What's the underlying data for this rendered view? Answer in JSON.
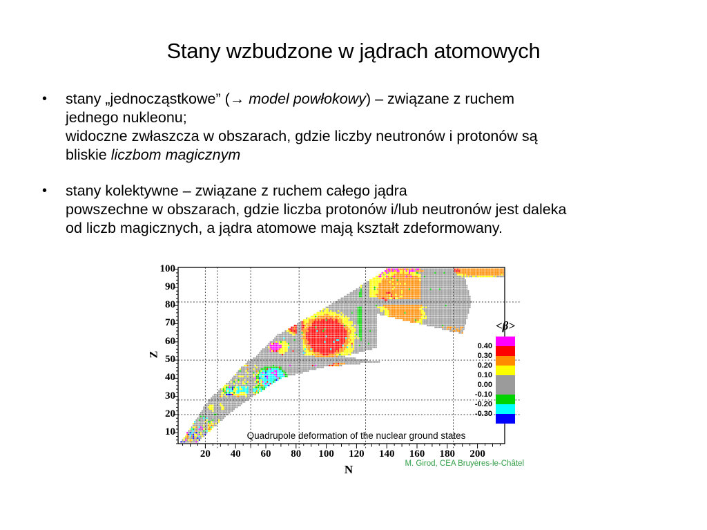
{
  "slide": {
    "title": "Stany wzbudzone w jądrach atomowych",
    "bullets": [
      {
        "marker": "•",
        "lines": [
          [
            {
              "t": "stany „jednocząstkowe” (→ "
            },
            {
              "t": "model powłokowy",
              "i": true
            },
            {
              "t": ") – związane z ruchem"
            }
          ],
          [
            {
              "t": "jednego nukleonu;"
            }
          ],
          [
            {
              "t": "widoczne zwłaszcza w obszarach, gdzie liczby neutronów i protonów są"
            }
          ],
          [
            {
              "t": "bliskie "
            },
            {
              "t": "liczbom magicznym",
              "i": true
            }
          ]
        ]
      },
      {
        "marker": "•",
        "lines": [
          [
            {
              "t": "stany kolektywne – związane z ruchem całego jądra"
            }
          ],
          [
            {
              "t": "powszechne w obszarach, gdzie liczba protonów i/lub neutronów jest daleka"
            }
          ],
          [
            {
              "t": "od liczb magicznych, a jądra atomowe mają kształt zdeformowany."
            }
          ]
        ]
      }
    ]
  },
  "chart_data": {
    "type": "heatmap",
    "caption": "Quadrupole deformation of the nuclear ground states",
    "credit": "M. Girod, CEA Bruyères-le-Châtel",
    "credit_color": "#2e9e44",
    "xlabel": "N",
    "ylabel": "Z",
    "xlim": [
      2,
      218
    ],
    "ylim": [
      4,
      101
    ],
    "x_ticks": [
      20,
      40,
      60,
      80,
      100,
      120,
      140,
      160,
      180,
      200
    ],
    "y_ticks": [
      10,
      20,
      30,
      40,
      50,
      60,
      70,
      80,
      90,
      100
    ],
    "gridlines": {
      "style": "dashed",
      "x_at": [
        20,
        28,
        50,
        82,
        126,
        184
      ],
      "y_at": [
        20,
        28,
        50,
        82
      ]
    },
    "legend": {
      "title": "<β>",
      "tick_labels": [
        "0.40",
        "0.30",
        "0.20",
        "0.10",
        "0.00",
        "-0.10",
        "-0.20",
        "-0.30"
      ],
      "colors_top_to_bottom": [
        "magenta",
        "red",
        "orange",
        "yellow",
        "gray",
        "green",
        "cyan",
        "blue"
      ],
      "position": "right"
    },
    "palette": {
      "magenta": "#ff00ff",
      "red": "#ff0000",
      "orange": "#ff8c00",
      "yellow": "#ffff00",
      "gray": "#9b9b9b",
      "green": "#00d300",
      "cyan": "#00ffff",
      "blue": "#0000ff"
    },
    "value_bins": {
      "thresholds": [
        0.4,
        0.3,
        0.2,
        0.1,
        -0.1,
        -0.2,
        -0.3
      ],
      "colors": [
        "magenta",
        "red",
        "orange",
        "yellow",
        "gray",
        "green",
        "cyan",
        "blue"
      ]
    },
    "model": {
      "band": [
        [
          5,
          4,
          15
        ],
        [
          20,
          16,
          35
        ],
        [
          28,
          22,
          48
        ],
        [
          40,
          38,
          70
        ],
        [
          46,
          44,
          98
        ],
        [
          49,
          48,
          135
        ],
        [
          52,
          54,
          112
        ],
        [
          56,
          58,
          130
        ],
        [
          64,
          68,
          190
        ],
        [
          82,
          106,
          196
        ],
        [
          100,
          140,
          190
        ]
      ],
      "spurs": [
        [
          96,
          100,
          184,
          222
        ]
      ],
      "diag_holes": [
        {
          "z": [
            56,
            75
          ],
          "n_from": 134,
          "edge": 135,
          "slope": 5.2
        }
      ],
      "force_gray": [
        [
          83,
          101,
          163,
          184
        ]
      ],
      "magic_n": [
        8,
        20,
        28,
        50,
        82,
        126,
        184
      ],
      "magic_z": [
        8,
        20,
        28,
        50,
        82
      ],
      "soft_gray_threshold": 0.2,
      "noise": 0.07,
      "blobs": [
        [
          100,
          63,
          12,
          9,
          0.35,
          1.3
        ],
        [
          80,
          69,
          5,
          4,
          0.33,
          0.8
        ],
        [
          66,
          57,
          3,
          2,
          0.42,
          0.5
        ],
        [
          150,
          87,
          15,
          10,
          0.26,
          0.8
        ],
        [
          152,
          75,
          10,
          5,
          0.24,
          1.0
        ],
        [
          205,
          100,
          24,
          3.2,
          0.24,
          0.9
        ],
        [
          26,
          24,
          5,
          4,
          0.16,
          1.0
        ],
        [
          40,
          32,
          7,
          2.5,
          0.15,
          1.0
        ],
        [
          24,
          11,
          5,
          3,
          0.22,
          1.0
        ],
        [
          64,
          40,
          8,
          5,
          -0.27,
          0.9
        ],
        [
          35,
          33,
          2.5,
          2,
          -0.18,
          0.6
        ],
        [
          123,
          75,
          2,
          13,
          -0.15,
          0.6
        ],
        [
          160,
          92,
          2,
          6,
          -0.13,
          0.7
        ],
        [
          70,
          57,
          5,
          3,
          0.14,
          0.8
        ],
        [
          132,
          91,
          8,
          7,
          0.14,
          1.2
        ],
        [
          46,
          33.5,
          12,
          1.6,
          -0.25,
          0.6
        ]
      ],
      "sprinkles": [
        [
          30,
          58,
          29,
          47,
          "yellow",
          0.2
        ],
        [
          30,
          58,
          29,
          47,
          "orange",
          0.05
        ],
        [
          22,
          34,
          21,
          27,
          "yellow",
          0.15
        ],
        [
          4,
          28,
          4,
          12,
          "blue",
          0.14
        ],
        [
          4,
          30,
          4,
          13,
          "magenta",
          0.09
        ],
        [
          4,
          26,
          4,
          15,
          "orange",
          0.11
        ],
        [
          6,
          30,
          6,
          17,
          "yellow",
          0.13
        ],
        [
          8,
          32,
          8,
          18,
          "cyan",
          0.07
        ],
        [
          12,
          34,
          10,
          20,
          "green",
          0.06
        ],
        [
          22,
          30,
          11,
          15,
          "red",
          0.05
        ],
        [
          58,
          68,
          37,
          44,
          "magenta",
          0.18
        ],
        [
          62,
          70,
          55,
          59,
          "magenta",
          0.3
        ],
        [
          34,
          38,
          31,
          35,
          "blue",
          0.12
        ],
        [
          30,
          120,
          28,
          52,
          "magenta",
          0.012
        ],
        [
          30,
          130,
          30,
          60,
          "red",
          0.012
        ],
        [
          20,
          180,
          20,
          101,
          "green",
          0.012
        ],
        [
          70,
          124,
          50,
          68,
          "cyan",
          0.015
        ],
        [
          138,
          164,
          99,
          101,
          "orange",
          0.65
        ],
        [
          140,
          162,
          99,
          101,
          "magenta",
          0.45
        ],
        [
          134,
          160,
          96,
          99,
          "magenta",
          0.1
        ],
        [
          185,
          188,
          99,
          101,
          "red",
          0.6
        ],
        [
          136,
          146,
          83,
          87,
          "red",
          0.25
        ],
        [
          142,
          156,
          84,
          96,
          "yellow",
          0.1
        ],
        [
          102,
          112,
          46,
          48,
          "orange",
          0.5
        ],
        [
          102,
          108,
          46,
          48,
          "red",
          0.2
        ],
        [
          176,
          190,
          63,
          68,
          "orange",
          0.45
        ]
      ]
    }
  }
}
